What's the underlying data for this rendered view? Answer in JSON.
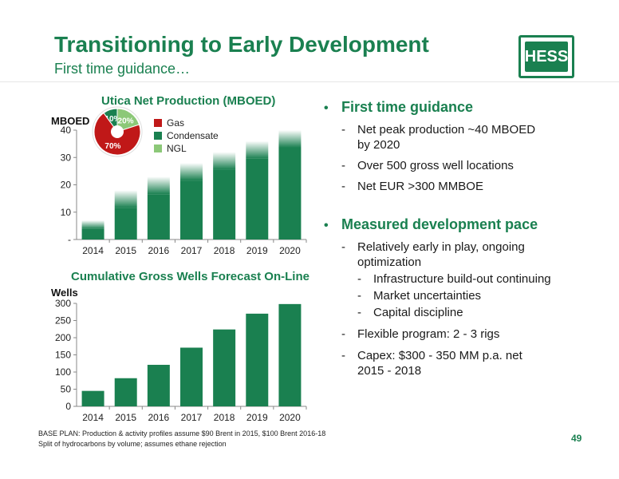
{
  "header": {
    "title": "Transitioning to Early Development",
    "subtitle": "First time guidance…",
    "logo_text": "HESS"
  },
  "colors": {
    "brand_green": "#1a8050",
    "gas_red": "#c01818",
    "condensate_green": "#1a8050",
    "ngl_light_green": "#8cc878"
  },
  "chart_data": [
    {
      "type": "bar",
      "title": "Utica Net Production (MBOED)",
      "ylabel": "MBOED",
      "categories": [
        "2014",
        "2015",
        "2016",
        "2017",
        "2018",
        "2019",
        "2020"
      ],
      "values": [
        7,
        18,
        23,
        28,
        32,
        36,
        40
      ],
      "ylim": [
        0,
        40
      ],
      "yticks": [
        "-",
        "10",
        "20",
        "30",
        "40"
      ],
      "grid": false,
      "inset": {
        "type": "pie",
        "series": [
          {
            "name": "Gas",
            "value": 70,
            "label": "70%",
            "color": "#c01818"
          },
          {
            "name": "Condensate",
            "value": 10,
            "label": "10%",
            "color": "#1a8050"
          },
          {
            "name": "NGL",
            "value": 20,
            "label": "20%",
            "color": "#8cc878"
          }
        ],
        "legend_placement": "right"
      }
    },
    {
      "type": "bar",
      "title": "Cumulative Gross Wells Forecast On-Line",
      "ylabel": "Wells",
      "categories": [
        "2014",
        "2015",
        "2016",
        "2017",
        "2018",
        "2019",
        "2020"
      ],
      "values": [
        45,
        82,
        121,
        171,
        224,
        270,
        298
      ],
      "ylim": [
        0,
        300
      ],
      "yticks": [
        "0",
        "50",
        "100",
        "150",
        "200",
        "250",
        "300"
      ],
      "grid": false
    }
  ],
  "bullets": [
    {
      "heading": "First time guidance",
      "items": [
        {
          "text": "Net peak production ~40 MBOED",
          "cont": "by 2020",
          "level": 1
        },
        {
          "text": "Over 500 gross well locations",
          "level": 1
        },
        {
          "text": "Net EUR >300 MMBOE",
          "level": 1
        }
      ]
    },
    {
      "heading": "Measured development pace",
      "items": [
        {
          "text": "Relatively early in play, ongoing",
          "cont": "optimization",
          "level": 1
        },
        {
          "text": "Infrastructure build-out continuing",
          "level": 2
        },
        {
          "text": "Market uncertainties",
          "level": 2
        },
        {
          "text": "Capital discipline",
          "level": 2
        },
        {
          "text": "Flexible program: 2 - 3 rigs",
          "level": 1
        },
        {
          "text": "Capex: $300 - 350 MM p.a. net",
          "cont": "2015 - 2018",
          "level": 1
        }
      ]
    }
  ],
  "footnotes": [
    "BASE PLAN: Production & activity profiles assume $90 Brent in 2015, $100 Brent 2016-18",
    "Split of hydrocarbons by volume; assumes ethane rejection"
  ],
  "page_number": "49"
}
